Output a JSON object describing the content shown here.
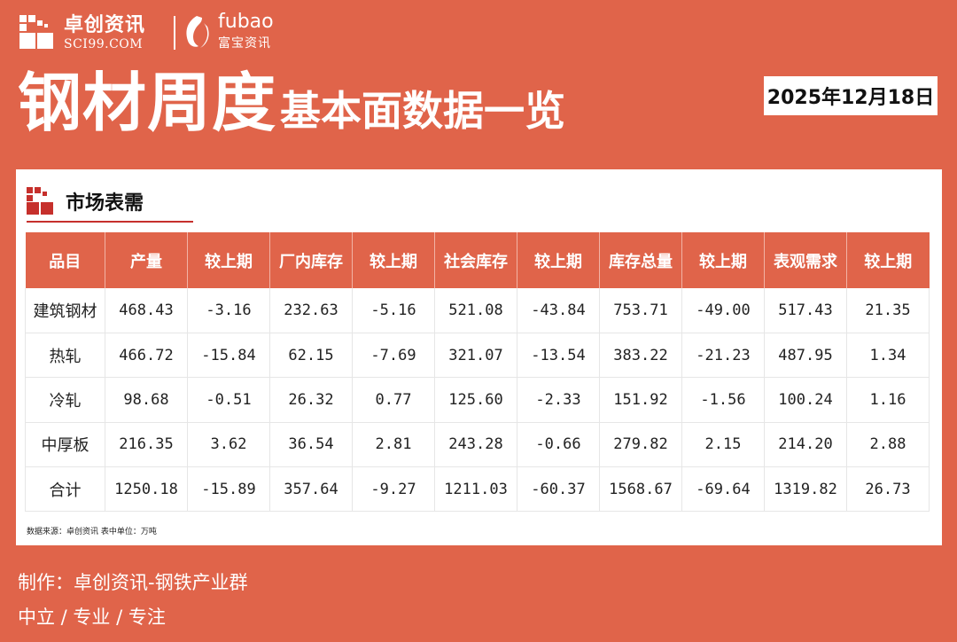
{
  "header": {
    "logo_cn": "卓创资讯",
    "logo_en": "SCI99.COM",
    "fubao_en": "fubao",
    "fubao_cn": "富宝资讯",
    "title_main": "钢材周度",
    "title_sub": "基本面数据一览",
    "date": "2025年12月18日"
  },
  "section": {
    "title": "市场表需"
  },
  "table": {
    "headers": [
      "品目",
      "产量",
      "较上期",
      "厂内库存",
      "较上期",
      "社会库存",
      "较上期",
      "库存总量",
      "较上期",
      "表观需求",
      "较上期"
    ],
    "rows": [
      [
        "建筑钢材",
        "468.43",
        "-3.16",
        "232.63",
        "-5.16",
        "521.08",
        "-43.84",
        "753.71",
        "-49.00",
        "517.43",
        "21.35"
      ],
      [
        "热轧",
        "466.72",
        "-15.84",
        "62.15",
        "-7.69",
        "321.07",
        "-13.54",
        "383.22",
        "-21.23",
        "487.95",
        "1.34"
      ],
      [
        "冷轧",
        "98.68",
        "-0.51",
        "26.32",
        "0.77",
        "125.60",
        "-2.33",
        "151.92",
        "-1.56",
        "100.24",
        "1.16"
      ],
      [
        "中厚板",
        "216.35",
        "3.62",
        "36.54",
        "2.81",
        "243.28",
        "-0.66",
        "279.82",
        "2.15",
        "214.20",
        "2.88"
      ],
      [
        "合计",
        "1250.18",
        "-15.89",
        "357.64",
        "-9.27",
        "1211.03",
        "-60.37",
        "1568.67",
        "-69.64",
        "1319.82",
        "26.73"
      ]
    ]
  },
  "footnote": "数据来源：卓创资讯 表中单位：万吨",
  "footer": {
    "line1": "制作：卓创资讯-钢铁产业群",
    "line2": "中立 / 专业 / 专注"
  },
  "colors": {
    "background": "#e0644a",
    "accent_red": "#c6302c",
    "positive": "#e02020",
    "negative": "#1aa33a"
  }
}
